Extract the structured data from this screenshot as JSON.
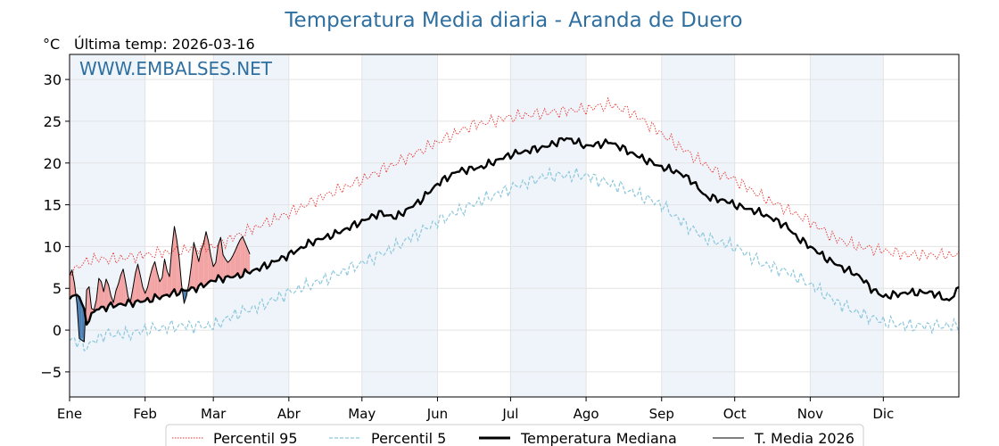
{
  "chart_data": {
    "type": "line",
    "title": "Temperatura Media diaria - Aranda de Duero",
    "unit_label": "°C",
    "last_temp_label": "Última temp: 2026-03-16",
    "watermark": "WWW.EMBALSES.NET",
    "ylim": [
      -8,
      33
    ],
    "yticks": [
      -5,
      0,
      5,
      10,
      15,
      20,
      25,
      30
    ],
    "ytick_labels": [
      "−5",
      "0",
      "5",
      "10",
      "15",
      "20",
      "25",
      "30"
    ],
    "xlim": [
      1,
      366
    ],
    "months": [
      {
        "label": "Ene",
        "start": 1
      },
      {
        "label": "Feb",
        "start": 32
      },
      {
        "label": "Mar",
        "start": 60
      },
      {
        "label": "Abr",
        "start": 91
      },
      {
        "label": "May",
        "start": 121
      },
      {
        "label": "Jun",
        "start": 152
      },
      {
        "label": "Jul",
        "start": 182
      },
      {
        "label": "Ago",
        "start": 213
      },
      {
        "label": "Sep",
        "start": 244
      },
      {
        "label": "Oct",
        "start": 274
      },
      {
        "label": "Nov",
        "start": 305
      },
      {
        "label": "Dic",
        "start": 335
      }
    ],
    "grid": true,
    "legend_position": "bottom",
    "colors": {
      "p95": "#e8322e",
      "p5": "#8cc7dc",
      "median": "#000000",
      "current": "#000000",
      "above_fill": "#f2a3a3",
      "below_fill": "#4b7fb3",
      "band": "#eef4fa",
      "title": "#2f6f9f"
    },
    "series": [
      {
        "name": "Percentil 95",
        "style": "dotted",
        "anchors": [
          [
            1,
            7
          ],
          [
            10,
            8.5
          ],
          [
            20,
            8.5
          ],
          [
            32,
            9
          ],
          [
            45,
            9.5
          ],
          [
            60,
            10
          ],
          [
            75,
            12
          ],
          [
            91,
            14
          ],
          [
            105,
            16
          ],
          [
            121,
            18
          ],
          [
            135,
            20
          ],
          [
            152,
            22.5
          ],
          [
            166,
            24.5
          ],
          [
            182,
            25.5
          ],
          [
            197,
            26
          ],
          [
            213,
            26.5
          ],
          [
            223,
            27
          ],
          [
            232,
            26
          ],
          [
            244,
            23.5
          ],
          [
            256,
            21
          ],
          [
            266,
            19
          ],
          [
            274,
            18
          ],
          [
            285,
            16
          ],
          [
            295,
            14.5
          ],
          [
            305,
            13
          ],
          [
            315,
            11
          ],
          [
            325,
            10
          ],
          [
            335,
            9.5
          ],
          [
            345,
            9
          ],
          [
            355,
            9
          ],
          [
            366,
            9
          ]
        ]
      },
      {
        "name": "Percentil 5",
        "style": "dashed",
        "anchors": [
          [
            1,
            -1
          ],
          [
            8,
            -2
          ],
          [
            15,
            -0.5
          ],
          [
            25,
            -0.5
          ],
          [
            32,
            0
          ],
          [
            45,
            0.5
          ],
          [
            60,
            0.5
          ],
          [
            70,
            2
          ],
          [
            80,
            3
          ],
          [
            91,
            4.5
          ],
          [
            105,
            6
          ],
          [
            121,
            8
          ],
          [
            135,
            10
          ],
          [
            152,
            13
          ],
          [
            166,
            15
          ],
          [
            182,
            17
          ],
          [
            197,
            18.5
          ],
          [
            213,
            18.5
          ],
          [
            228,
            17
          ],
          [
            244,
            15
          ],
          [
            252,
            13
          ],
          [
            262,
            11
          ],
          [
            274,
            10
          ],
          [
            285,
            8
          ],
          [
            295,
            7
          ],
          [
            305,
            5.5
          ],
          [
            315,
            3.5
          ],
          [
            325,
            2
          ],
          [
            335,
            1
          ],
          [
            345,
            0.5
          ],
          [
            355,
            0.5
          ],
          [
            366,
            0.5
          ]
        ]
      },
      {
        "name": "Temperatura Mediana",
        "style": "solid-thick",
        "anchors": [
          [
            1,
            4
          ],
          [
            5,
            4.2
          ],
          [
            8,
            1
          ],
          [
            12,
            2.5
          ],
          [
            20,
            3
          ],
          [
            32,
            3.5
          ],
          [
            45,
            4.5
          ],
          [
            55,
            5.2
          ],
          [
            60,
            6
          ],
          [
            70,
            6.5
          ],
          [
            80,
            7.5
          ],
          [
            91,
            9
          ],
          [
            100,
            10.5
          ],
          [
            110,
            11.5
          ],
          [
            121,
            13
          ],
          [
            128,
            14
          ],
          [
            135,
            13.5
          ],
          [
            145,
            15.5
          ],
          [
            152,
            17.5
          ],
          [
            160,
            19
          ],
          [
            170,
            19.5
          ],
          [
            182,
            21
          ],
          [
            197,
            22
          ],
          [
            205,
            23
          ],
          [
            213,
            22
          ],
          [
            223,
            22.5
          ],
          [
            233,
            21
          ],
          [
            244,
            19.5
          ],
          [
            250,
            19
          ],
          [
            256,
            18
          ],
          [
            262,
            16
          ],
          [
            270,
            15.5
          ],
          [
            274,
            15
          ],
          [
            285,
            14
          ],
          [
            295,
            12.5
          ],
          [
            300,
            11
          ],
          [
            305,
            10
          ],
          [
            312,
            8.5
          ],
          [
            318,
            7.5
          ],
          [
            325,
            6.5
          ],
          [
            330,
            5
          ],
          [
            335,
            4
          ],
          [
            345,
            4.5
          ],
          [
            355,
            4.5
          ],
          [
            362,
            3.5
          ],
          [
            366,
            5
          ]
        ]
      },
      {
        "name": "T. Media 2026",
        "style": "solid-thin",
        "values": [
          [
            1,
            6.5
          ],
          [
            2,
            7.2
          ],
          [
            3,
            5.6
          ],
          [
            4,
            3.2
          ],
          [
            5,
            -1.0
          ],
          [
            6,
            -1.2
          ],
          [
            7,
            -1.4
          ],
          [
            8,
            4.8
          ],
          [
            9,
            5.2
          ],
          [
            10,
            2.6
          ],
          [
            11,
            2.4
          ],
          [
            12,
            3.6
          ],
          [
            13,
            6.2
          ],
          [
            14,
            5.8
          ],
          [
            15,
            4.6
          ],
          [
            16,
            6.1
          ],
          [
            17,
            5.4
          ],
          [
            18,
            4.1
          ],
          [
            19,
            3.3
          ],
          [
            20,
            4.7
          ],
          [
            21,
            5.5
          ],
          [
            22,
            6.6
          ],
          [
            23,
            7.3
          ],
          [
            24,
            5.8
          ],
          [
            25,
            4.0
          ],
          [
            26,
            3.4
          ],
          [
            27,
            5.0
          ],
          [
            28,
            6.8
          ],
          [
            29,
            7.9
          ],
          [
            30,
            6.6
          ],
          [
            31,
            5.2
          ],
          [
            32,
            4.4
          ],
          [
            33,
            5.1
          ],
          [
            34,
            6.4
          ],
          [
            35,
            7.5
          ],
          [
            36,
            8.2
          ],
          [
            37,
            6.9
          ],
          [
            38,
            5.8
          ],
          [
            39,
            6.3
          ],
          [
            40,
            8.5
          ],
          [
            41,
            7.1
          ],
          [
            42,
            6.4
          ],
          [
            43,
            9.8
          ],
          [
            44,
            12.4
          ],
          [
            45,
            10.8
          ],
          [
            46,
            8.6
          ],
          [
            47,
            5.4
          ],
          [
            48,
            3.2
          ],
          [
            49,
            4.1
          ],
          [
            50,
            5.6
          ],
          [
            51,
            7.8
          ],
          [
            52,
            10.5
          ],
          [
            53,
            9.4
          ],
          [
            54,
            8.2
          ],
          [
            55,
            9.6
          ],
          [
            56,
            10.3
          ],
          [
            57,
            11.8
          ],
          [
            58,
            10.6
          ],
          [
            59,
            8.9
          ],
          [
            60,
            7.6
          ],
          [
            61,
            8.1
          ],
          [
            62,
            10.2
          ],
          [
            63,
            11.1
          ],
          [
            64,
            9.0
          ],
          [
            65,
            8.5
          ],
          [
            66,
            8.1
          ],
          [
            67,
            8.4
          ],
          [
            68,
            8.9
          ],
          [
            69,
            9.5
          ],
          [
            70,
            10.2
          ],
          [
            71,
            10.8
          ],
          [
            72,
            11.2
          ],
          [
            73,
            10.5
          ],
          [
            74,
            9.8
          ],
          [
            75,
            9.1
          ]
        ]
      }
    ]
  }
}
